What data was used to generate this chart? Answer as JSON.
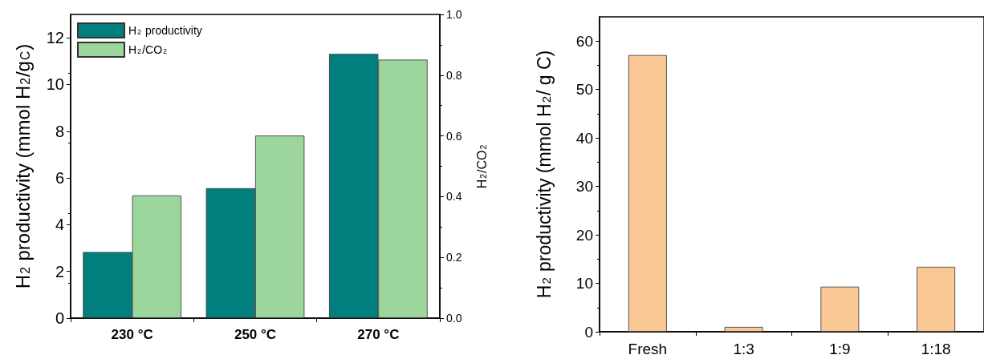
{
  "chart_data": [
    {
      "type": "bar",
      "categories": [
        "230 °C",
        "250 °C",
        "270 °C"
      ],
      "series": [
        {
          "name": "H$_{2}$ productivity",
          "color": "#017f7f",
          "values": [
            2.83,
            5.56,
            11.31
          ]
        },
        {
          "name": "H$_{2}$/CO$_{2}$",
          "color": "#9dd69c",
          "values": [
            0.404,
            0.601,
            0.851
          ],
          "axis": "y2"
        }
      ],
      "ylabel": "H$_{2}$ productivity (mmol H$_{2}$/g$_{C}$)",
      "y2label": "H$_{2}$/CO$_{2}$",
      "ylim": [
        0,
        13
      ],
      "yticks": [
        0,
        2,
        4,
        6,
        8,
        10,
        12
      ],
      "y2lim": [
        0,
        1
      ],
      "y2ticks": [
        {
          "value": 0,
          "label": "0.0"
        },
        {
          "value": 0.2,
          "label": "0.2"
        },
        {
          "value": 0.4,
          "label": "0.4"
        },
        {
          "value": 0.6,
          "label": "0.6"
        },
        {
          "value": 0.8,
          "label": "0.8"
        },
        {
          "value": 1,
          "label": "1.0"
        }
      ],
      "legend": "top left"
    },
    {
      "type": "bar",
      "categories": [
        "Fresh",
        "1:3",
        "1:9",
        "1:18"
      ],
      "series": [
        {
          "color": "#f9c895",
          "values": [
            57.1,
            1.0,
            9.3,
            13.4
          ]
        }
      ],
      "ylabel": "H$_{2}$ productivity (mmol H$_{2}$/ g C)",
      "ylim": [
        0,
        65
      ],
      "yticks": [
        0,
        10,
        20,
        30,
        40,
        50,
        60
      ]
    }
  ]
}
